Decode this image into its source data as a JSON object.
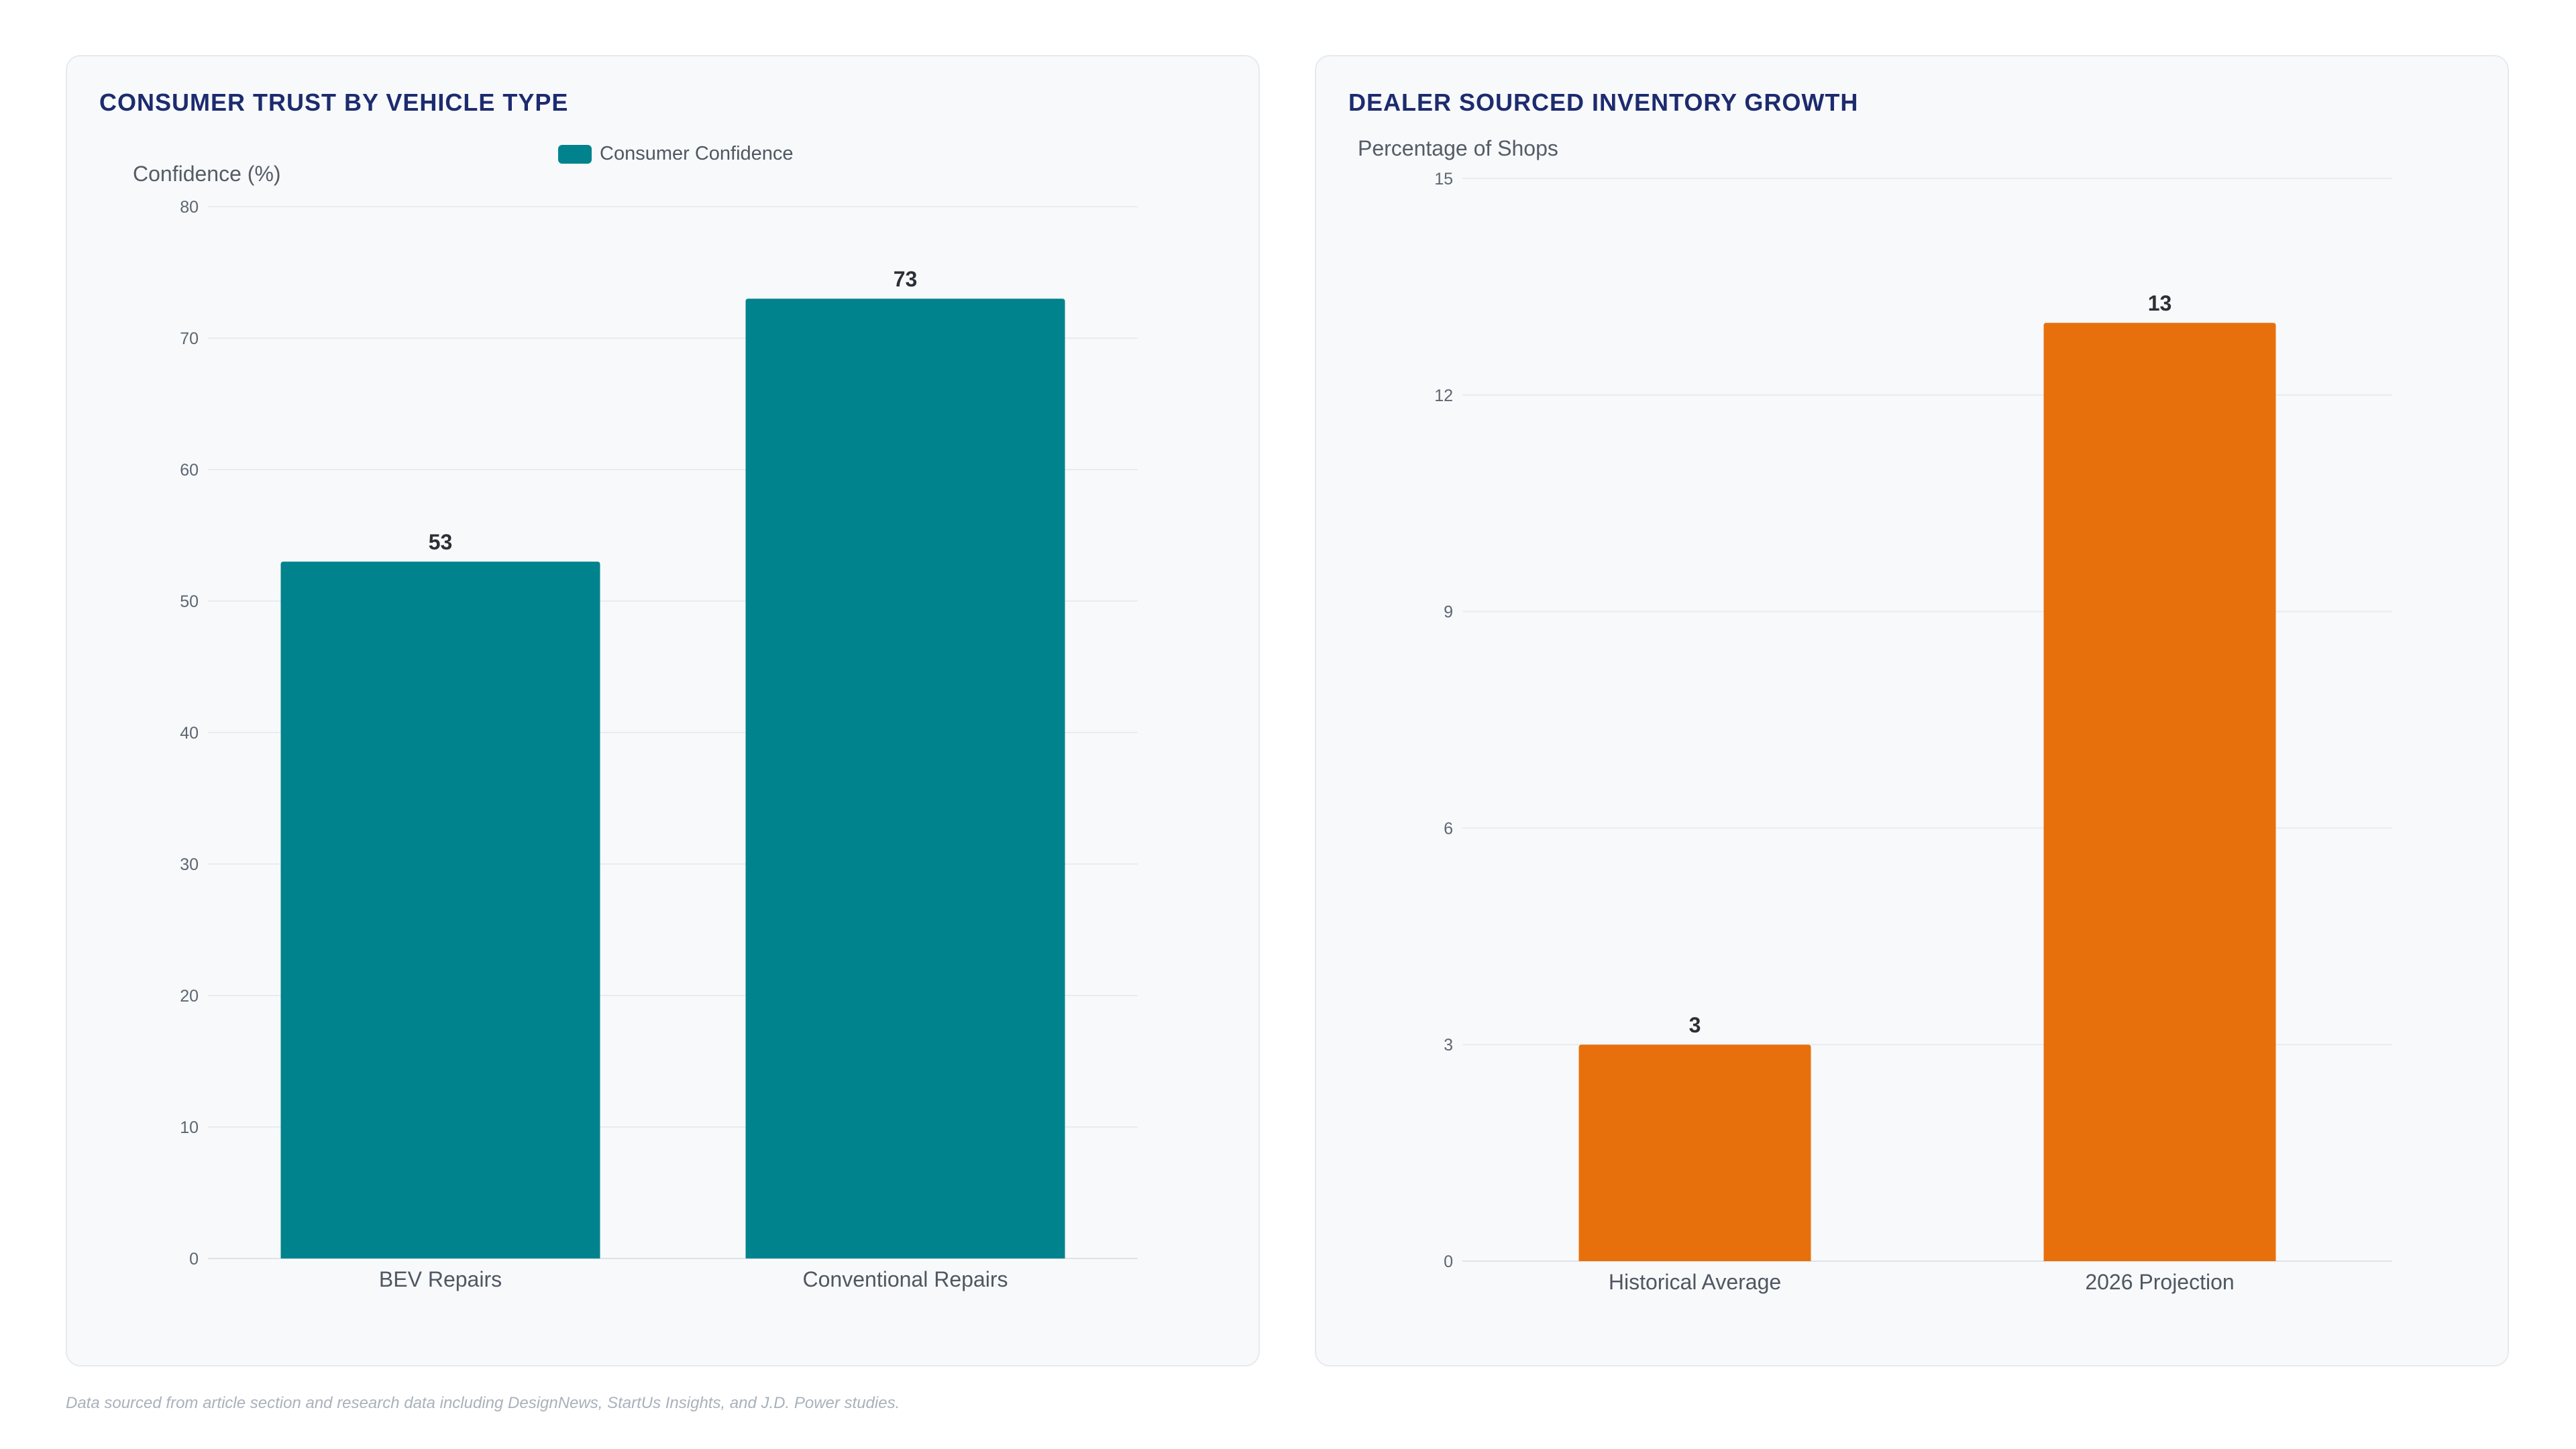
{
  "chart_data": [
    {
      "type": "bar",
      "title": "CONSUMER TRUST BY VEHICLE TYPE",
      "ylabel": "Confidence (%)",
      "xlabel": "",
      "categories": [
        "BEV Repairs",
        "Conventional Repairs"
      ],
      "series": [
        {
          "name": "Consumer Confidence",
          "values": [
            53,
            73
          ]
        }
      ],
      "ylim": [
        0,
        80
      ],
      "yticks": [
        0,
        10,
        20,
        30,
        40,
        50,
        60,
        70,
        80
      ],
      "legend": "top-center",
      "grid": true,
      "color": "#00838d"
    },
    {
      "type": "bar",
      "title": "DEALER SOURCED INVENTORY GROWTH",
      "ylabel": "Percentage of Shops",
      "xlabel": "",
      "categories": [
        "Historical Average",
        "2026 Projection"
      ],
      "series": [
        {
          "values": [
            3,
            13
          ]
        }
      ],
      "ylim": [
        0,
        15
      ],
      "yticks": [
        0,
        3,
        6,
        9,
        12,
        15
      ],
      "grid": true,
      "color": "#e8700c"
    }
  ],
  "footnote": "Data sourced from article section and research data including DesignNews, StartUs Insights, and J.D. Power studies."
}
